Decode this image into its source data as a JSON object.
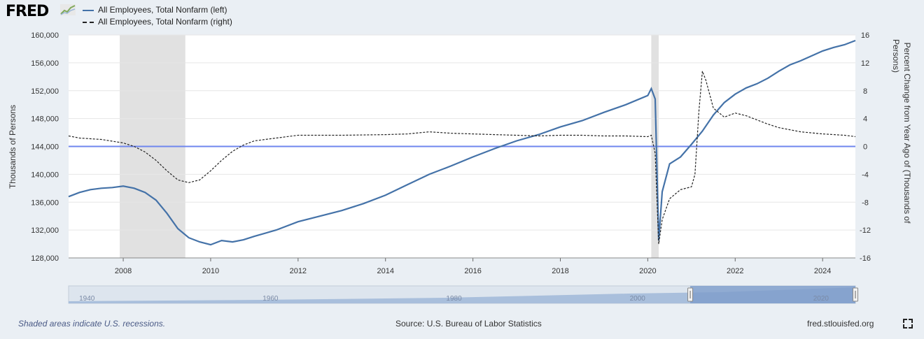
{
  "header": {
    "logo_text": "FRED",
    "legend": [
      {
        "label": "All Employees, Total Nonfarm (left)",
        "color": "#4472a8",
        "style": "solid"
      },
      {
        "label": "All Employees, Total Nonfarm (right)",
        "color": "#222222",
        "style": "dashed"
      }
    ]
  },
  "footer": {
    "recession_note": "Shaded areas indicate U.S. recessions.",
    "source": "Source: U.S. Bureau of Labor Statistics",
    "site": "fred.stlouisfed.org"
  },
  "colors": {
    "left_series": "#4472a8",
    "right_series": "#222222",
    "zero_line": "#6f86ee",
    "recession_shade": "#e1e1e1",
    "navigator_fill": "#a9bfdc",
    "navigator_selected": "#7d9ccb"
  },
  "icons": [
    "fred-graph-icon",
    "fullscreen-icon"
  ],
  "chart_data": {
    "type": "line",
    "title": "",
    "xlabel": "",
    "ylabel": "Thousands of Persons",
    "ylabel_right": "Percent Change from Year Ago of (Thousands of Persons)",
    "xlim": [
      2006.75,
      2024.75
    ],
    "ylim": [
      128000,
      160000
    ],
    "ylim_right": [
      -16,
      16
    ],
    "x_ticks": [
      2008,
      2010,
      2012,
      2014,
      2016,
      2018,
      2020,
      2022,
      2024
    ],
    "y_ticks": [
      128000,
      132000,
      136000,
      140000,
      144000,
      148000,
      152000,
      156000,
      160000
    ],
    "y_tick_labels": [
      "128,000",
      "132,000",
      "136,000",
      "140,000",
      "144,000",
      "148,000",
      "152,000",
      "156,000",
      "160,000"
    ],
    "y_ticks_right": [
      -16,
      -12,
      -8,
      -4,
      0,
      4,
      8,
      12,
      16
    ],
    "grid": true,
    "legend_position": "top-left",
    "recessions": [
      [
        2007.92,
        2009.42
      ],
      [
        2020.08,
        2020.25
      ]
    ],
    "reference_line_right": 0,
    "series": [
      {
        "name": "All Employees, Total Nonfarm (left)",
        "axis": "left",
        "style": "solid",
        "x": [
          2006.75,
          2007.0,
          2007.25,
          2007.5,
          2007.75,
          2008.0,
          2008.25,
          2008.5,
          2008.75,
          2009.0,
          2009.25,
          2009.5,
          2009.75,
          2010.0,
          2010.25,
          2010.5,
          2010.75,
          2011.0,
          2011.5,
          2012.0,
          2012.5,
          2013.0,
          2013.5,
          2014.0,
          2014.5,
          2015.0,
          2015.5,
          2016.0,
          2016.5,
          2017.0,
          2017.5,
          2018.0,
          2018.5,
          2019.0,
          2019.5,
          2020.0,
          2020.08,
          2020.17,
          2020.25,
          2020.33,
          2020.5,
          2020.75,
          2021.0,
          2021.25,
          2021.5,
          2021.75,
          2022.0,
          2022.25,
          2022.5,
          2022.75,
          2023.0,
          2023.25,
          2023.5,
          2023.75,
          2024.0,
          2024.25,
          2024.5,
          2024.75
        ],
        "y": [
          136800,
          137400,
          137800,
          138000,
          138100,
          138300,
          138000,
          137400,
          136300,
          134400,
          132200,
          130900,
          130300,
          129900,
          130500,
          130300,
          130600,
          131100,
          132000,
          133200,
          134000,
          134800,
          135800,
          137000,
          138500,
          140000,
          141200,
          142500,
          143700,
          144800,
          145700,
          146800,
          147700,
          148900,
          150000,
          151300,
          152300,
          150800,
          130500,
          137500,
          141500,
          142500,
          144300,
          146200,
          148500,
          150300,
          151500,
          152400,
          153000,
          153800,
          154800,
          155700,
          156300,
          157000,
          157700,
          158200,
          158600,
          159200
        ]
      },
      {
        "name": "All Employees, Total Nonfarm (right)",
        "axis": "right",
        "style": "dashed",
        "x": [
          2006.75,
          2007.0,
          2007.5,
          2008.0,
          2008.25,
          2008.5,
          2008.75,
          2009.0,
          2009.25,
          2009.5,
          2009.75,
          2010.0,
          2010.25,
          2010.5,
          2010.75,
          2011.0,
          2011.5,
          2012.0,
          2012.5,
          2013.0,
          2014.0,
          2014.5,
          2015.0,
          2015.5,
          2016.0,
          2016.5,
          2017.0,
          2017.5,
          2018.0,
          2018.5,
          2019.0,
          2019.5,
          2020.0,
          2020.08,
          2020.17,
          2020.25,
          2020.33,
          2020.5,
          2020.75,
          2021.0,
          2021.08,
          2021.17,
          2021.25,
          2021.33,
          2021.5,
          2021.75,
          2022.0,
          2022.25,
          2022.5,
          2022.75,
          2023.0,
          2023.25,
          2023.5,
          2024.0,
          2024.5,
          2024.75
        ],
        "y": [
          1.5,
          1.2,
          1.0,
          0.5,
          0.0,
          -0.8,
          -2.0,
          -3.5,
          -4.8,
          -5.2,
          -4.8,
          -3.5,
          -2.0,
          -0.7,
          0.2,
          0.8,
          1.2,
          1.6,
          1.6,
          1.6,
          1.7,
          1.8,
          2.1,
          1.9,
          1.8,
          1.7,
          1.6,
          1.5,
          1.6,
          1.6,
          1.5,
          1.5,
          1.4,
          1.6,
          -1.0,
          -14.0,
          -10.5,
          -7.5,
          -6.2,
          -5.8,
          -4.0,
          5.0,
          10.8,
          9.5,
          5.5,
          4.2,
          4.8,
          4.4,
          3.8,
          3.2,
          2.7,
          2.4,
          2.1,
          1.8,
          1.6,
          1.4
        ]
      }
    ],
    "navigator": {
      "x_tick_labels": [
        "1940",
        "1960",
        "1980",
        "2000",
        "2020"
      ],
      "selected_range": [
        2006.75,
        2024.75
      ]
    }
  }
}
